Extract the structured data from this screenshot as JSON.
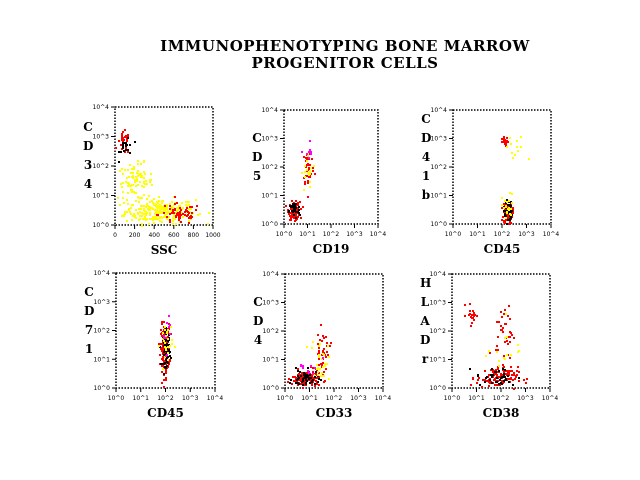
{
  "title_line1": "IMMUNOPHENOTYPING  BONE  MARROW",
  "title_line2": "PROGENITOR  CELLS",
  "colors": {
    "axis": "#000000",
    "yellow": "#ffff00",
    "red": "#ff0000",
    "black": "#000000",
    "magenta": "#ff00ff"
  },
  "chart_data": [
    {
      "type": "scatter",
      "xlabel": "SSC",
      "ylabel": "CD34",
      "xscale": "linear",
      "xlim": [
        0,
        1000
      ],
      "ylim": [
        0,
        4
      ],
      "xticks": [
        "0",
        "200",
        "400",
        "600",
        "800",
        "1000"
      ],
      "yticks": [
        "10^0",
        "10^1",
        "10^2",
        "10^3",
        "10^4"
      ],
      "clusters": [
        {
          "x": 450,
          "y": 0.5,
          "sx": 300,
          "sy": 0.35,
          "n": 260,
          "color": "yellow"
        },
        {
          "x": 200,
          "y": 1.5,
          "sx": 150,
          "sy": 0.5,
          "n": 90,
          "color": "yellow"
        },
        {
          "x": 650,
          "y": 0.4,
          "sx": 180,
          "sy": 0.3,
          "n": 60,
          "color": "red"
        },
        {
          "x": 80,
          "y": 2.8,
          "sx": 50,
          "sy": 0.3,
          "n": 30,
          "color": "red"
        },
        {
          "x": 110,
          "y": 2.7,
          "sx": 60,
          "sy": 0.35,
          "n": 20,
          "color": "black"
        }
      ]
    },
    {
      "type": "scatter",
      "xlabel": "CD19",
      "ylabel": "CD5",
      "xscale": "log",
      "xlim": [
        0,
        4
      ],
      "ylim": [
        0,
        4
      ],
      "xticks": [
        "10^0",
        "10^1",
        "10^2",
        "10^3",
        "10^4"
      ],
      "yticks": [
        "10^0",
        "10^1",
        "10^2",
        "10^3",
        "10^4"
      ],
      "clusters": [
        {
          "x": 0.4,
          "y": 0.5,
          "sx": 0.2,
          "sy": 0.25,
          "n": 120,
          "color": "red"
        },
        {
          "x": 0.4,
          "y": 0.5,
          "sx": 0.2,
          "sy": 0.25,
          "n": 40,
          "color": "black"
        },
        {
          "x": 1.0,
          "y": 2.0,
          "sx": 0.2,
          "sy": 0.6,
          "n": 40,
          "color": "red"
        },
        {
          "x": 1.0,
          "y": 1.8,
          "sx": 0.25,
          "sy": 0.6,
          "n": 20,
          "color": "yellow"
        },
        {
          "x": 1.0,
          "y": 2.5,
          "sx": 0.15,
          "sy": 0.4,
          "n": 8,
          "color": "magenta"
        }
      ]
    },
    {
      "type": "scatter",
      "xlabel": "CD45",
      "ylabel": "CD41b",
      "xscale": "log",
      "xlim": [
        0,
        4
      ],
      "ylim": [
        0,
        4
      ],
      "xticks": [
        "10^0",
        "10^1",
        "10^2",
        "10^3",
        "10^4"
      ],
      "yticks": [
        "10^0",
        "10^1",
        "10^2",
        "10^3",
        "10^4"
      ],
      "clusters": [
        {
          "x": 2.2,
          "y": 0.4,
          "sx": 0.15,
          "sy": 0.3,
          "n": 110,
          "color": "red"
        },
        {
          "x": 2.2,
          "y": 0.5,
          "sx": 0.15,
          "sy": 0.35,
          "n": 40,
          "color": "black"
        },
        {
          "x": 2.2,
          "y": 0.6,
          "sx": 0.2,
          "sy": 0.4,
          "n": 25,
          "color": "yellow"
        },
        {
          "x": 2.1,
          "y": 2.9,
          "sx": 0.1,
          "sy": 0.15,
          "n": 20,
          "color": "red"
        },
        {
          "x": 2.5,
          "y": 2.6,
          "sx": 0.4,
          "sy": 0.5,
          "n": 12,
          "color": "yellow"
        }
      ]
    },
    {
      "type": "scatter",
      "xlabel": "CD45",
      "ylabel": "CD71",
      "xscale": "log",
      "xlim": [
        0,
        4
      ],
      "ylim": [
        0,
        4
      ],
      "xticks": [
        "10^0",
        "10^1",
        "10^2",
        "10^3",
        "10^4"
      ],
      "yticks": [
        "10^0",
        "10^1",
        "10^2",
        "10^3",
        "10^4"
      ],
      "clusters": [
        {
          "x": 1.95,
          "y": 1.4,
          "sx": 0.15,
          "sy": 0.7,
          "n": 170,
          "color": "red"
        },
        {
          "x": 2.0,
          "y": 1.4,
          "sx": 0.12,
          "sy": 0.5,
          "n": 70,
          "color": "black"
        },
        {
          "x": 2.0,
          "y": 1.6,
          "sx": 0.2,
          "sy": 0.7,
          "n": 30,
          "color": "yellow"
        },
        {
          "x": 2.0,
          "y": 2.0,
          "sx": 0.15,
          "sy": 0.6,
          "n": 10,
          "color": "magenta"
        }
      ]
    },
    {
      "type": "scatter",
      "xlabel": "CD33",
      "ylabel": "CD4",
      "xscale": "log",
      "xlim": [
        0,
        4
      ],
      "ylim": [
        0,
        4
      ],
      "xticks": [
        "10^0",
        "10^1",
        "10^2",
        "10^3",
        "10^4"
      ],
      "yticks": [
        "10^0",
        "10^1",
        "10^2",
        "10^3",
        "10^4"
      ],
      "clusters": [
        {
          "x": 0.8,
          "y": 0.35,
          "sx": 0.45,
          "sy": 0.25,
          "n": 150,
          "color": "red"
        },
        {
          "x": 0.8,
          "y": 0.35,
          "sx": 0.45,
          "sy": 0.25,
          "n": 50,
          "color": "black"
        },
        {
          "x": 1.5,
          "y": 1.3,
          "sx": 0.25,
          "sy": 0.6,
          "n": 40,
          "color": "red"
        },
        {
          "x": 1.4,
          "y": 1.0,
          "sx": 0.3,
          "sy": 0.6,
          "n": 30,
          "color": "yellow"
        },
        {
          "x": 1.0,
          "y": 0.8,
          "sx": 0.4,
          "sy": 0.4,
          "n": 10,
          "color": "magenta"
        }
      ]
    },
    {
      "type": "scatter",
      "xlabel": "CD38",
      "ylabel": "HLADr",
      "xscale": "log",
      "xlim": [
        0,
        4
      ],
      "ylim": [
        0,
        4
      ],
      "xticks": [
        "10^0",
        "10^1",
        "10^2",
        "10^3",
        "10^4"
      ],
      "yticks": [
        "10^0",
        "10^1",
        "10^2",
        "10^3",
        "10^4"
      ],
      "clusters": [
        {
          "x": 1.8,
          "y": 0.4,
          "sx": 0.7,
          "sy": 0.3,
          "n": 110,
          "color": "red"
        },
        {
          "x": 1.8,
          "y": 0.4,
          "sx": 0.7,
          "sy": 0.3,
          "n": 40,
          "color": "black"
        },
        {
          "x": 0.8,
          "y": 2.6,
          "sx": 0.2,
          "sy": 0.3,
          "n": 20,
          "color": "red"
        },
        {
          "x": 2.1,
          "y": 2.0,
          "sx": 0.3,
          "sy": 0.8,
          "n": 40,
          "color": "red"
        },
        {
          "x": 2.0,
          "y": 1.5,
          "sx": 0.6,
          "sy": 0.9,
          "n": 15,
          "color": "yellow"
        }
      ]
    }
  ]
}
